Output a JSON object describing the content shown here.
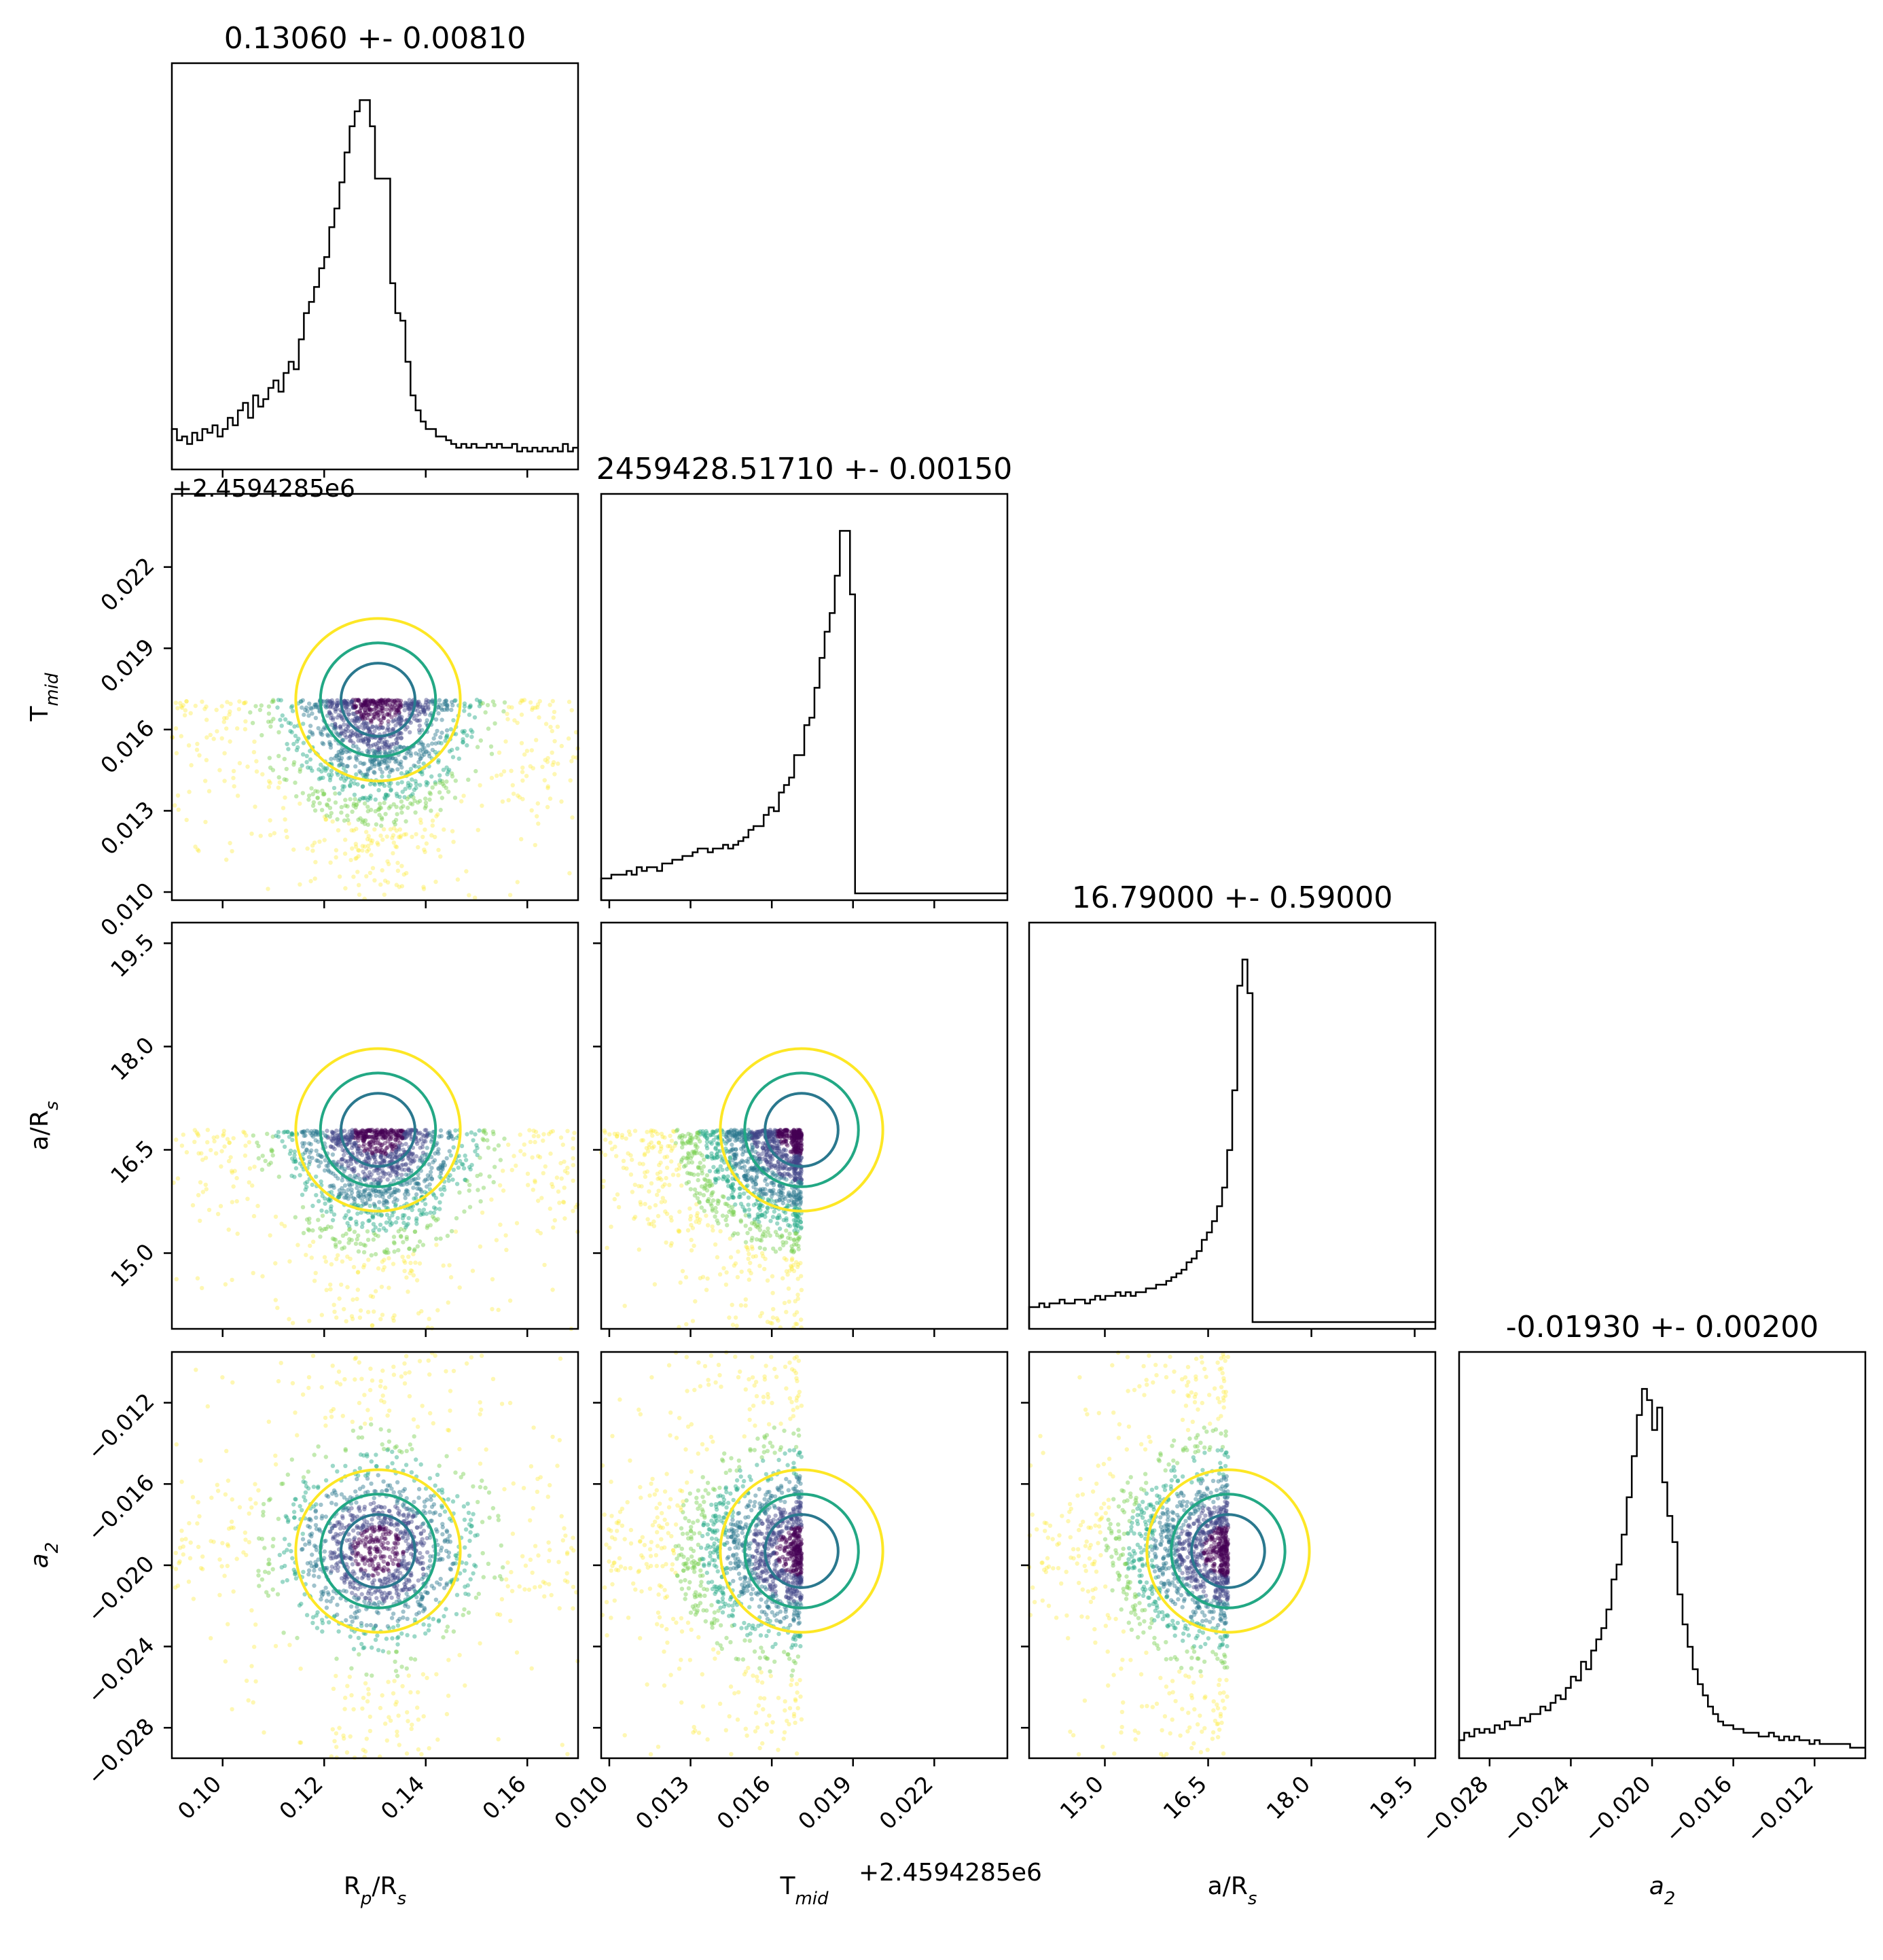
{
  "figure": {
    "type": "corner_plot"
  },
  "chart_data": {
    "type": "scatter",
    "parameters": [
      {
        "key": "rp",
        "label": "R",
        "label_sub": "p",
        "label_tail": "/R",
        "label_sub2": "s",
        "title": "0.13060 +- 0.00810",
        "median": 0.1306,
        "sigma": 0.0081,
        "range": [
          0.09,
          0.17
        ],
        "ticks": [
          "0.10",
          "0.12",
          "0.14",
          "0.16"
        ],
        "tick_values": [
          0.1,
          0.12,
          0.14,
          0.16
        ]
      },
      {
        "key": "tmid",
        "label": "T",
        "label_sub": "mid",
        "label_tail": "",
        "label_sub2": "",
        "title": "2459428.51710 +- 0.00150",
        "median": 0.0171,
        "sigma": 0.0015,
        "offset": "+2.4594285e6",
        "range": [
          0.0097,
          0.0247
        ],
        "ticks": [
          "0.010",
          "0.013",
          "0.016",
          "0.019",
          "0.022"
        ],
        "tick_values": [
          0.01,
          0.013,
          0.016,
          0.019,
          0.022
        ]
      },
      {
        "key": "ars",
        "label": "a/R",
        "label_sub": "s",
        "label_tail": "",
        "label_sub2": "",
        "title": "16.79000 +- 0.59000",
        "median": 16.79,
        "sigma": 0.59,
        "range": [
          13.9,
          19.8
        ],
        "ticks": [
          "15.0",
          "16.5",
          "18.0",
          "19.5"
        ],
        "tick_values": [
          15.0,
          16.5,
          18.0,
          19.5
        ]
      },
      {
        "key": "a2",
        "label": "a",
        "label_sub": "2",
        "label_tail": "",
        "label_sub2": "",
        "italic": true,
        "title": "-0.01930 +- 0.00200",
        "median": -0.0193,
        "sigma": 0.002,
        "range": [
          -0.0295,
          -0.0095
        ],
        "ticks": [
          "−0.028",
          "−0.024",
          "−0.020",
          "−0.016",
          "−0.012"
        ],
        "tick_values": [
          -0.028,
          -0.024,
          -0.02,
          -0.016,
          -0.012
        ]
      }
    ],
    "histogram": {
      "rp": [
        0.09,
        0.06,
        0.07,
        0.05,
        0.08,
        0.06,
        0.09,
        0.08,
        0.1,
        0.07,
        0.09,
        0.12,
        0.1,
        0.14,
        0.16,
        0.12,
        0.18,
        0.15,
        0.17,
        0.2,
        0.22,
        0.19,
        0.24,
        0.27,
        0.25,
        0.33,
        0.4,
        0.43,
        0.47,
        0.52,
        0.55,
        0.63,
        0.68,
        0.75,
        0.83,
        0.9,
        0.94,
        0.97,
        0.97,
        0.9,
        0.76,
        0.76,
        0.76,
        0.48,
        0.4,
        0.38,
        0.27,
        0.18,
        0.14,
        0.11,
        0.09,
        0.09,
        0.07,
        0.07,
        0.06,
        0.05,
        0.04,
        0.05,
        0.04,
        0.05,
        0.04,
        0.04,
        0.05,
        0.04,
        0.05,
        0.04,
        0.04,
        0.05,
        0.03,
        0.04,
        0.03,
        0.04,
        0.03,
        0.04,
        0.03,
        0.04,
        0.03,
        0.05,
        0.03,
        0.04
      ],
      "tmid": [
        0.04,
        0.04,
        0.05,
        0.05,
        0.05,
        0.06,
        0.05,
        0.07,
        0.06,
        0.07,
        0.07,
        0.06,
        0.08,
        0.08,
        0.09,
        0.09,
        0.1,
        0.1,
        0.11,
        0.12,
        0.12,
        0.11,
        0.12,
        0.12,
        0.13,
        0.12,
        0.13,
        0.14,
        0.15,
        0.17,
        0.18,
        0.18,
        0.21,
        0.23,
        0.22,
        0.27,
        0.29,
        0.31,
        0.37,
        0.37,
        0.45,
        0.47,
        0.55,
        0.63,
        0.7,
        0.75,
        0.85,
        0.97,
        0.97,
        0.8,
        0,
        0,
        0,
        0,
        0,
        0,
        0,
        0,
        0,
        0,
        0,
        0,
        0,
        0,
        0,
        0,
        0,
        0,
        0,
        0,
        0,
        0,
        0,
        0,
        0,
        0,
        0,
        0,
        0,
        0
      ],
      "ars": [
        0.04,
        0.04,
        0.05,
        0.04,
        0.05,
        0.05,
        0.06,
        0.05,
        0.05,
        0.06,
        0.06,
        0.05,
        0.06,
        0.07,
        0.06,
        0.07,
        0.07,
        0.08,
        0.07,
        0.08,
        0.07,
        0.08,
        0.08,
        0.09,
        0.09,
        0.1,
        0.1,
        0.11,
        0.12,
        0.13,
        0.14,
        0.16,
        0.17,
        0.19,
        0.22,
        0.24,
        0.27,
        0.31,
        0.36,
        0.46,
        0.62,
        0.9,
        0.97,
        0.88,
        0,
        0,
        0,
        0,
        0,
        0,
        0,
        0,
        0,
        0,
        0,
        0,
        0,
        0,
        0,
        0,
        0,
        0,
        0,
        0,
        0,
        0,
        0,
        0,
        0,
        0,
        0,
        0,
        0,
        0,
        0,
        0,
        0,
        0,
        0,
        0
      ],
      "a2": [
        0.03,
        0.05,
        0.04,
        0.06,
        0.05,
        0.06,
        0.05,
        0.07,
        0.06,
        0.08,
        0.07,
        0.07,
        0.09,
        0.08,
        0.1,
        0.1,
        0.12,
        0.11,
        0.13,
        0.15,
        0.14,
        0.17,
        0.2,
        0.19,
        0.24,
        0.22,
        0.27,
        0.3,
        0.33,
        0.38,
        0.46,
        0.5,
        0.58,
        0.68,
        0.79,
        0.9,
        0.97,
        0.94,
        0.86,
        0.92,
        0.72,
        0.63,
        0.56,
        0.42,
        0.34,
        0.28,
        0.22,
        0.18,
        0.15,
        0.12,
        0.1,
        0.08,
        0.07,
        0.07,
        0.06,
        0.06,
        0.05,
        0.05,
        0.05,
        0.04,
        0.04,
        0.05,
        0.04,
        0.03,
        0.04,
        0.03,
        0.04,
        0.03,
        0.03,
        0.02,
        0.03,
        0.02,
        0.02,
        0.02,
        0.02,
        0.02,
        0.02,
        0.01,
        0.01,
        0.01
      ]
    },
    "colormap": [
      "#fde725",
      "#7ad151",
      "#22a884",
      "#2a788e",
      "#414487",
      "#440154"
    ],
    "contour_colors": {
      "outer": "#fde725",
      "inner": "#22a884",
      "core": "#2a788e"
    },
    "histogram_color": "#000000",
    "grid": false,
    "legend": "none"
  }
}
